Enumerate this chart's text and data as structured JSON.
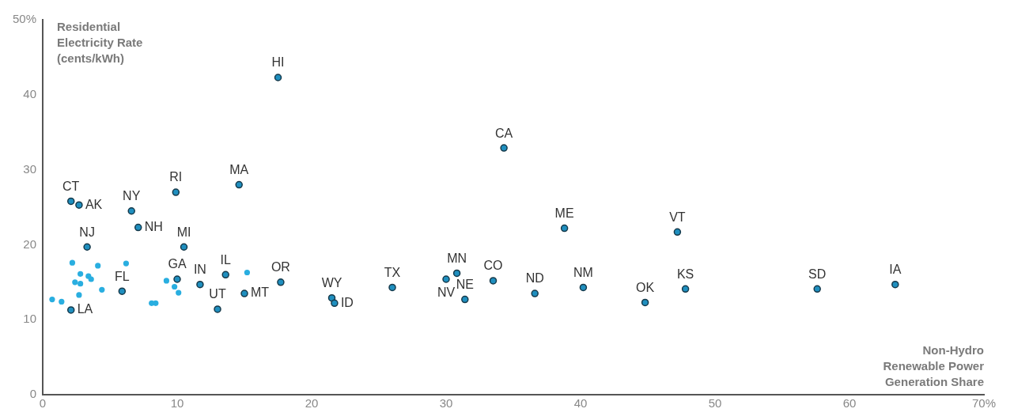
{
  "chart_data": {
    "type": "scatter",
    "xlabel": "Non-Hydro Renewable Power Generation Share",
    "ylabel": "Residential Electricity Rate (cents/kWh)",
    "xlim": [
      0,
      70
    ],
    "xticks": [
      0,
      10,
      20,
      30,
      40,
      50,
      60,
      {
        "value": 70,
        "label": "70%"
      }
    ],
    "ylim": [
      0,
      50
    ],
    "yticks": [
      0,
      10,
      20,
      30,
      40,
      {
        "value": 50,
        "label": "50%"
      }
    ],
    "grid": false,
    "legend": false,
    "marker": "circle",
    "series": [
      {
        "color": "#1f8fbf",
        "x": [
          17.5,
          34.3,
          14.6,
          9.9,
          2.1,
          2.7,
          6.6,
          7.1,
          3.3,
          10.5,
          38.8,
          47.2,
          10.0,
          11.7,
          13.6,
          15.0,
          13.0,
          17.7,
          21.5,
          21.7,
          26.0,
          30.0,
          30.8,
          31.4,
          33.5,
          36.6,
          40.2,
          44.8,
          47.8,
          57.6,
          63.4,
          5.9,
          2.1
        ],
        "values": [
          42.3,
          32.9,
          28.0,
          27.0,
          25.8,
          25.3,
          24.5,
          22.3,
          19.7,
          19.7,
          22.2,
          21.7,
          15.4,
          14.7,
          16.0,
          13.5,
          11.4,
          15.0,
          12.9,
          12.2,
          14.3,
          15.4,
          16.2,
          12.7,
          15.2,
          13.5,
          14.3,
          12.3,
          14.1,
          14.1,
          14.7,
          13.8,
          11.3
        ]
      },
      {
        "color": "#29aee0",
        "x": [
          0.7,
          1.4,
          2.2,
          2.8,
          2.4,
          2.8,
          2.7,
          3.4,
          3.6,
          4.1,
          4.4,
          6.2,
          8.1,
          8.4,
          9.2,
          9.8,
          10.1,
          15.2
        ],
        "values": [
          12.7,
          12.4,
          17.6,
          16.1,
          15.0,
          14.8,
          13.3,
          15.8,
          15.4,
          17.2,
          14.0,
          17.5,
          12.2,
          12.2,
          15.2,
          14.4,
          13.6,
          16.3
        ]
      }
    ],
    "annotations": [
      {
        "text": "HI",
        "x": 17.5,
        "y": 42.3
      },
      {
        "text": "CA",
        "x": 34.3,
        "y": 32.9
      },
      {
        "text": "MA",
        "x": 14.6,
        "y": 28.0
      },
      {
        "text": "RI",
        "x": 9.9,
        "y": 27.0
      },
      {
        "text": "CT",
        "x": 2.1,
        "y": 25.8
      },
      {
        "text": "AK",
        "x": 2.7,
        "y": 25.3
      },
      {
        "text": "NY",
        "x": 6.6,
        "y": 24.5
      },
      {
        "text": "NH",
        "x": 7.1,
        "y": 22.3
      },
      {
        "text": "NJ",
        "x": 3.3,
        "y": 19.7
      },
      {
        "text": "MI",
        "x": 10.5,
        "y": 19.7
      },
      {
        "text": "ME",
        "x": 38.8,
        "y": 22.2
      },
      {
        "text": "VT",
        "x": 47.2,
        "y": 21.7
      },
      {
        "text": "GA",
        "x": 10.0,
        "y": 15.4
      },
      {
        "text": "IN",
        "x": 11.7,
        "y": 14.7
      },
      {
        "text": "IL",
        "x": 13.6,
        "y": 16.0
      },
      {
        "text": "MT",
        "x": 15.0,
        "y": 13.5
      },
      {
        "text": "UT",
        "x": 13.0,
        "y": 11.4
      },
      {
        "text": "OR",
        "x": 17.7,
        "y": 15.0
      },
      {
        "text": "WY",
        "x": 21.5,
        "y": 12.9
      },
      {
        "text": "ID",
        "x": 21.7,
        "y": 12.2
      },
      {
        "text": "TX",
        "x": 26.0,
        "y": 14.3
      },
      {
        "text": "NV",
        "x": 30.0,
        "y": 15.4
      },
      {
        "text": "MN",
        "x": 30.8,
        "y": 16.2
      },
      {
        "text": "NE",
        "x": 31.4,
        "y": 12.7
      },
      {
        "text": "CO",
        "x": 33.5,
        "y": 15.2
      },
      {
        "text": "ND",
        "x": 36.6,
        "y": 13.5
      },
      {
        "text": "NM",
        "x": 40.2,
        "y": 14.3
      },
      {
        "text": "OK",
        "x": 44.8,
        "y": 12.3
      },
      {
        "text": "KS",
        "x": 47.8,
        "y": 14.1
      },
      {
        "text": "SD",
        "x": 57.6,
        "y": 14.1
      },
      {
        "text": "IA",
        "x": 63.4,
        "y": 14.7
      },
      {
        "text": "FL",
        "x": 5.9,
        "y": 13.8
      },
      {
        "text": "LA",
        "x": 2.1,
        "y": 11.3
      }
    ]
  }
}
